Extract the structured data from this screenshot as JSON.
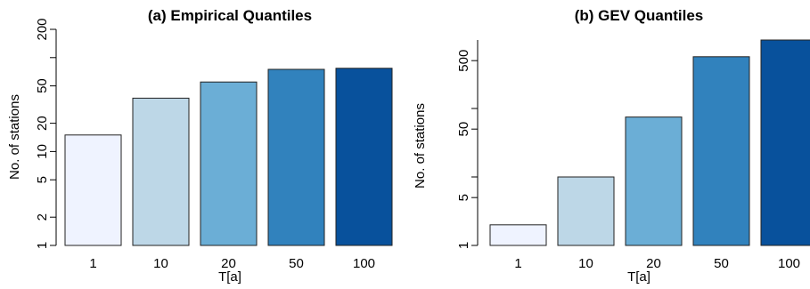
{
  "chart_data": [
    {
      "type": "bar",
      "title": "(a) Empirical Quantiles",
      "xlabel": "T[a]",
      "ylabel": "No. of stations",
      "yscale": "log",
      "ylim": [
        1,
        200
      ],
      "yticks": [
        1,
        2,
        5,
        10,
        20,
        50,
        200
      ],
      "ytick_labels": [
        "1",
        "2",
        "5",
        "10",
        "20",
        "50",
        "200"
      ],
      "y_unlabeled_ticks": [
        100
      ],
      "grid": false,
      "categories": [
        "1",
        "10",
        "20",
        "50",
        "100"
      ],
      "values": [
        15,
        37,
        55,
        75,
        77
      ],
      "colors": [
        "#eff3ff",
        "#bdd7e7",
        "#6baed6",
        "#3182bd",
        "#08519c"
      ]
    },
    {
      "type": "bar",
      "title": "(b) GEV Quantiles",
      "xlabel": "T[a]",
      "ylabel": "No. of stations",
      "yscale": "log",
      "ylim": [
        1,
        1000
      ],
      "yticks": [
        1,
        5,
        50,
        500
      ],
      "ytick_labels": [
        "1",
        "5",
        "50",
        "500"
      ],
      "y_unlabeled_ticks": [
        10,
        100
      ],
      "grid": false,
      "categories": [
        "1",
        "10",
        "20",
        "50",
        "100"
      ],
      "values": [
        2,
        10,
        75,
        570,
        1000
      ],
      "colors": [
        "#eff3ff",
        "#bdd7e7",
        "#6baed6",
        "#3182bd",
        "#08519c"
      ]
    }
  ]
}
